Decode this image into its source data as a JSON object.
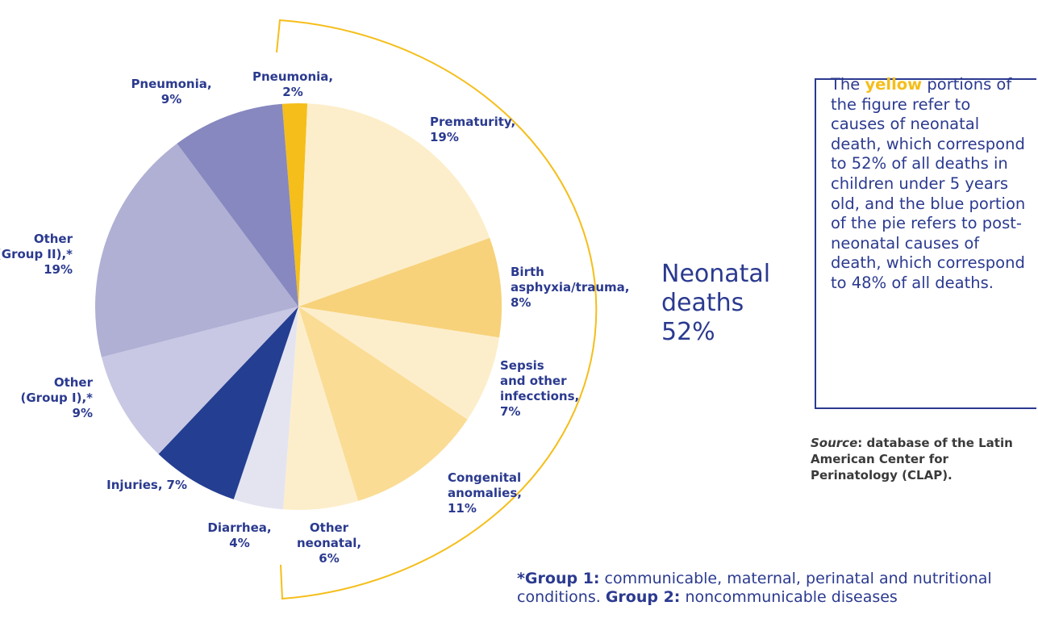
{
  "chart_data": {
    "type": "pie",
    "categories": [
      "Pneumonia,",
      "Prematurity,",
      "Birth\nasphyxia/trauma,",
      "Sepsis\nand other\ninfecctions,",
      "Congenital\nanomalies,",
      "Other\nneonatal,",
      "Diarrhea,",
      "Injuries,",
      "Other\n(Group I),*",
      "Other\n(Group II),*",
      "Pneumonia,"
    ],
    "values": [
      2,
      19,
      8,
      7,
      11,
      6,
      4,
      7,
      9,
      19,
      9
    ],
    "value_labels": [
      "2%",
      "19%",
      "8%",
      "7%",
      "11%",
      "6%",
      "4%",
      "7%",
      "9%",
      "19%",
      "9%"
    ],
    "colors": [
      "#f5be1a",
      "#fdeecb",
      "#f7d27a",
      "#fdeecb",
      "#fadc95",
      "#fdeecb",
      "#e4e4f1",
      "#243e91",
      "#c8c8e4",
      "#b0b0d5",
      "#8788bf"
    ],
    "annotation": {
      "line1": "Neonatal",
      "line2": "deaths",
      "value_label": "52%"
    },
    "note": {
      "part1": "The ",
      "highlight": "yellow",
      "part2": " portions of the figure refer to causes of neonatal death, which correspond to 52% of all deaths in children under 5 years old, and the blue portion of the pie refers to post-neonatal causes of death, which correspond to 48% of all deaths."
    },
    "source": {
      "label": "Source",
      "text": ": database of the Latin American Center for Perinatology (CLAP)."
    },
    "footnote": {
      "g1": "*Group 1:",
      "t1": " communicable, maternal, perinatal and nutritional conditions. ",
      "g2": "Group 2:",
      "t2": " noncommunicable diseases"
    }
  }
}
